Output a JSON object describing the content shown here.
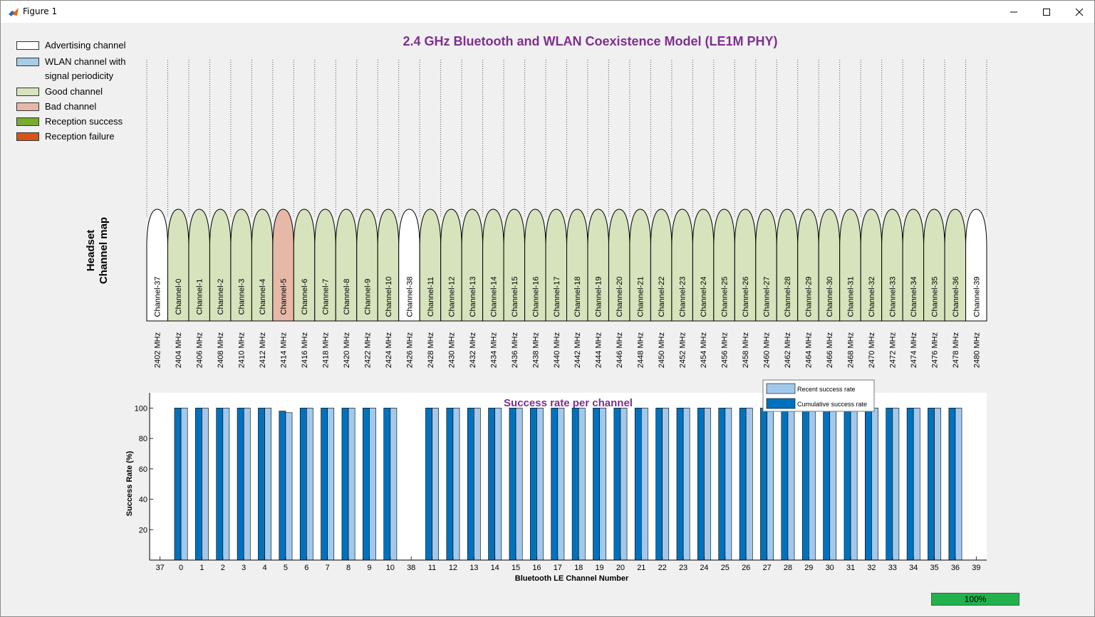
{
  "window": {
    "title": "Figure 1",
    "icons": [
      "matlab-figure-icon",
      "minimize-icon",
      "maximize-icon",
      "close-icon"
    ]
  },
  "legend": {
    "items": [
      {
        "label": "Advertising channel",
        "color": "#ffffff"
      },
      {
        "label": "WLAN channel with\nsignal periodicity",
        "color": "#a5cce9"
      },
      {
        "label": "Good channel",
        "color": "#d6e3bc"
      },
      {
        "label": "Bad channel",
        "color": "#e6b8a8"
      },
      {
        "label": "Reception success",
        "color": "#77ac30"
      },
      {
        "label": "Reception failure",
        "color": "#d95319"
      }
    ]
  },
  "channel_map": {
    "title": "2.4 GHz Bluetooth and WLAN Coexistence Model (LE1M PHY)",
    "ylabel_line1": "Headset",
    "ylabel_line2": "Channel map",
    "channels": [
      {
        "name": "Channel-37",
        "freq": "2402 MHz",
        "status": "advertising"
      },
      {
        "name": "Channel-0",
        "freq": "2404 MHz",
        "status": "good"
      },
      {
        "name": "Channel-1",
        "freq": "2406 MHz",
        "status": "good"
      },
      {
        "name": "Channel-2",
        "freq": "2408 MHz",
        "status": "good"
      },
      {
        "name": "Channel-3",
        "freq": "2410 MHz",
        "status": "good"
      },
      {
        "name": "Channel-4",
        "freq": "2412 MHz",
        "status": "good"
      },
      {
        "name": "Channel-5",
        "freq": "2414 MHz",
        "status": "bad"
      },
      {
        "name": "Channel-6",
        "freq": "2416 MHz",
        "status": "good"
      },
      {
        "name": "Channel-7",
        "freq": "2418 MHz",
        "status": "good"
      },
      {
        "name": "Channel-8",
        "freq": "2420 MHz",
        "status": "good"
      },
      {
        "name": "Channel-9",
        "freq": "2422 MHz",
        "status": "good"
      },
      {
        "name": "Channel-10",
        "freq": "2424 MHz",
        "status": "good"
      },
      {
        "name": "Channel-38",
        "freq": "2426 MHz",
        "status": "advertising"
      },
      {
        "name": "Channel-11",
        "freq": "2428 MHz",
        "status": "good"
      },
      {
        "name": "Channel-12",
        "freq": "2430 MHz",
        "status": "good"
      },
      {
        "name": "Channel-13",
        "freq": "2432 MHz",
        "status": "good"
      },
      {
        "name": "Channel-14",
        "freq": "2434 MHz",
        "status": "good"
      },
      {
        "name": "Channel-15",
        "freq": "2436 MHz",
        "status": "good"
      },
      {
        "name": "Channel-16",
        "freq": "2438 MHz",
        "status": "good"
      },
      {
        "name": "Channel-17",
        "freq": "2440 MHz",
        "status": "good"
      },
      {
        "name": "Channel-18",
        "freq": "2442 MHz",
        "status": "good"
      },
      {
        "name": "Channel-19",
        "freq": "2444 MHz",
        "status": "good"
      },
      {
        "name": "Channel-20",
        "freq": "2446 MHz",
        "status": "good"
      },
      {
        "name": "Channel-21",
        "freq": "2448 MHz",
        "status": "good"
      },
      {
        "name": "Channel-22",
        "freq": "2450 MHz",
        "status": "good"
      },
      {
        "name": "Channel-23",
        "freq": "2452 MHz",
        "status": "good"
      },
      {
        "name": "Channel-24",
        "freq": "2454 MHz",
        "status": "good"
      },
      {
        "name": "Channel-25",
        "freq": "2456 MHz",
        "status": "good"
      },
      {
        "name": "Channel-26",
        "freq": "2458 MHz",
        "status": "good"
      },
      {
        "name": "Channel-27",
        "freq": "2460 MHz",
        "status": "good"
      },
      {
        "name": "Channel-28",
        "freq": "2462 MHz",
        "status": "good"
      },
      {
        "name": "Channel-29",
        "freq": "2464 MHz",
        "status": "good"
      },
      {
        "name": "Channel-30",
        "freq": "2466 MHz",
        "status": "good"
      },
      {
        "name": "Channel-31",
        "freq": "2468 MHz",
        "status": "good"
      },
      {
        "name": "Channel-32",
        "freq": "2470 MHz",
        "status": "good"
      },
      {
        "name": "Channel-33",
        "freq": "2472 MHz",
        "status": "good"
      },
      {
        "name": "Channel-34",
        "freq": "2474 MHz",
        "status": "good"
      },
      {
        "name": "Channel-35",
        "freq": "2476 MHz",
        "status": "good"
      },
      {
        "name": "Channel-36",
        "freq": "2478 MHz",
        "status": "good"
      },
      {
        "name": "Channel-39",
        "freq": "2480 MHz",
        "status": "advertising"
      }
    ]
  },
  "progress": {
    "label": "100%",
    "value": 1.0,
    "color": "#22b14c"
  },
  "chart_data": {
    "type": "bar",
    "title": "Success rate per channel",
    "xlabel": "Bluetooth LE Channel Number",
    "ylabel": "Success Rate (%)",
    "ylim": [
      0,
      110
    ],
    "yticks": [
      20,
      40,
      60,
      80,
      100
    ],
    "grid": false,
    "legend_position": "top-right",
    "title_color": "#7e2f8e",
    "categories": [
      "37",
      "0",
      "1",
      "2",
      "3",
      "4",
      "5",
      "6",
      "7",
      "8",
      "9",
      "10",
      "38",
      "11",
      "12",
      "13",
      "14",
      "15",
      "16",
      "17",
      "18",
      "19",
      "20",
      "21",
      "22",
      "23",
      "24",
      "25",
      "26",
      "27",
      "28",
      "29",
      "30",
      "31",
      "32",
      "33",
      "34",
      "35",
      "36",
      "39"
    ],
    "series": [
      {
        "name": "Cumulative success rate",
        "color": "#0072bd",
        "values": [
          null,
          100,
          100,
          100,
          100,
          100,
          98,
          100,
          100,
          100,
          100,
          100,
          null,
          100,
          100,
          100,
          100,
          100,
          100,
          100,
          100,
          100,
          100,
          100,
          100,
          100,
          100,
          100,
          100,
          100,
          100,
          100,
          100,
          100,
          100,
          100,
          100,
          100,
          100,
          null
        ]
      },
      {
        "name": "Recent success rate",
        "color": "#a2c8ec",
        "values": [
          null,
          100,
          100,
          100,
          100,
          100,
          97,
          100,
          100,
          100,
          100,
          100,
          null,
          100,
          100,
          100,
          100,
          100,
          100,
          100,
          100,
          100,
          100,
          100,
          100,
          100,
          100,
          100,
          100,
          100,
          100,
          100,
          100,
          100,
          100,
          100,
          100,
          100,
          100,
          null
        ]
      }
    ],
    "legend_order": [
      "Recent success rate",
      "Cumulative success rate"
    ]
  }
}
